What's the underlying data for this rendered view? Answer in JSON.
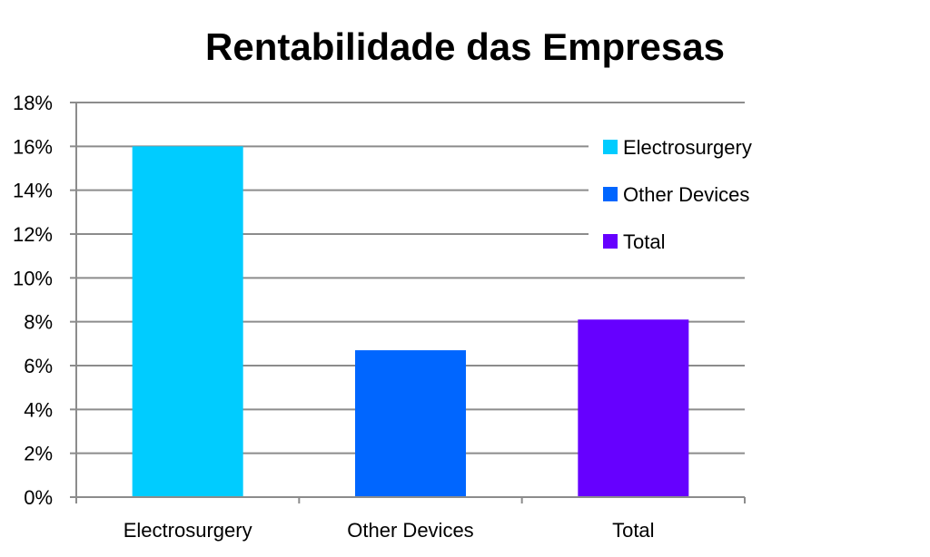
{
  "chart_data": {
    "type": "bar",
    "title": "Rentabilidade das Empresas",
    "xlabel": "",
    "ylabel": "",
    "categories": [
      "Electrosurgery",
      "Other Devices",
      "Total"
    ],
    "values": [
      16.0,
      6.7,
      8.1
    ],
    "colors": [
      "#00CCFF",
      "#0066FF",
      "#6600FF"
    ],
    "ylim": [
      0,
      18
    ],
    "yticks": [
      0,
      2,
      4,
      6,
      8,
      10,
      12,
      14,
      16,
      18
    ],
    "ytick_labels": [
      "0%",
      "2%",
      "4%",
      "6%",
      "8%",
      "10%",
      "12%",
      "14%",
      "16%",
      "18%"
    ],
    "grid": true,
    "legend": {
      "placement": "right",
      "entries": [
        "Electrosurgery",
        "Other Devices",
        "Total"
      ]
    }
  }
}
